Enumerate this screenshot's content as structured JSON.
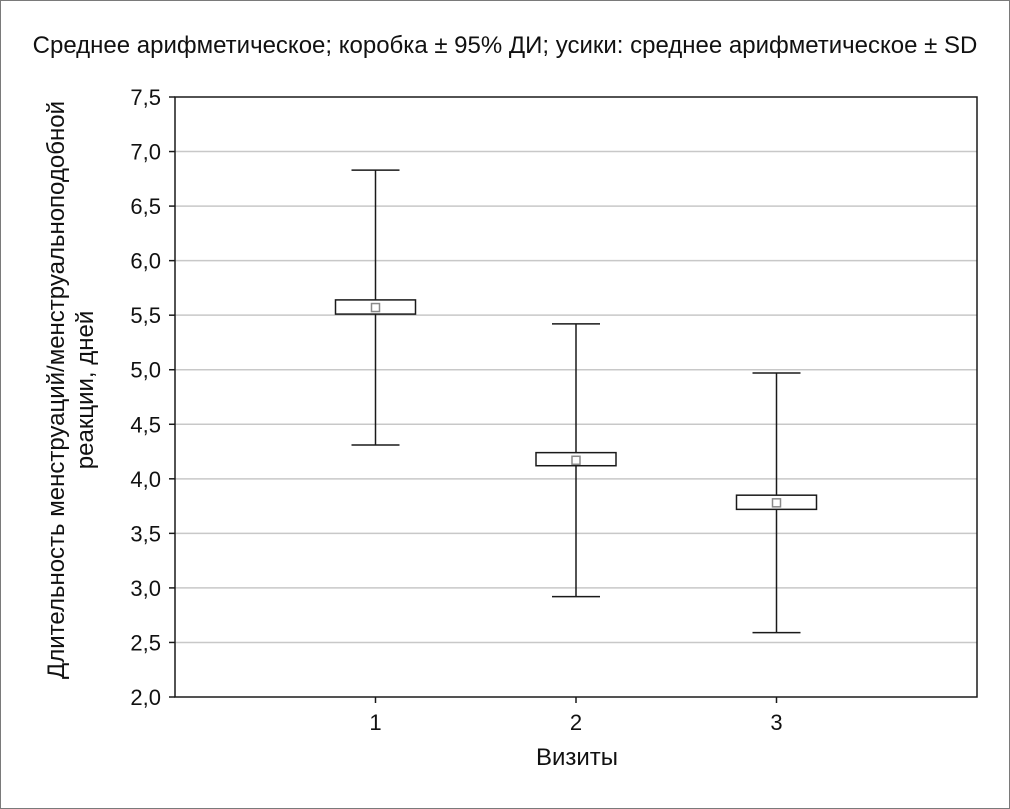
{
  "chart_data": {
    "type": "box",
    "title": "Среднее арифметическое; коробка ± 95% ДИ; усики: среднее арифметическое ± SD",
    "xlabel": "Визиты",
    "ylabel_lines": [
      "Длительность менструаций/менструальноподобной",
      "реакции, дней"
    ],
    "categories": [
      "1",
      "2",
      "3"
    ],
    "ylim": [
      2.0,
      7.5
    ],
    "yticks": [
      "2,0",
      "2,5",
      "3,0",
      "3,5",
      "4,0",
      "4,5",
      "5,0",
      "5,5",
      "6,0",
      "6,5",
      "7,0",
      "7,5"
    ],
    "ytick_values": [
      2.0,
      2.5,
      3.0,
      3.5,
      4.0,
      4.5,
      5.0,
      5.5,
      6.0,
      6.5,
      7.0,
      7.5
    ],
    "grid": true,
    "series": [
      {
        "category": "1",
        "mean": 5.57,
        "ci_low": 5.51,
        "ci_high": 5.64,
        "sd_low": 4.31,
        "sd_high": 6.83
      },
      {
        "category": "2",
        "mean": 4.17,
        "ci_low": 4.12,
        "ci_high": 4.24,
        "sd_low": 2.92,
        "sd_high": 5.42
      },
      {
        "category": "3",
        "mean": 3.78,
        "ci_low": 3.72,
        "ci_high": 3.85,
        "sd_low": 2.59,
        "sd_high": 4.97
      }
    ],
    "colors": {
      "line": "#1a1a1a",
      "grid": "#c8c8c8",
      "mean_marker": "#8a8a8a"
    }
  }
}
